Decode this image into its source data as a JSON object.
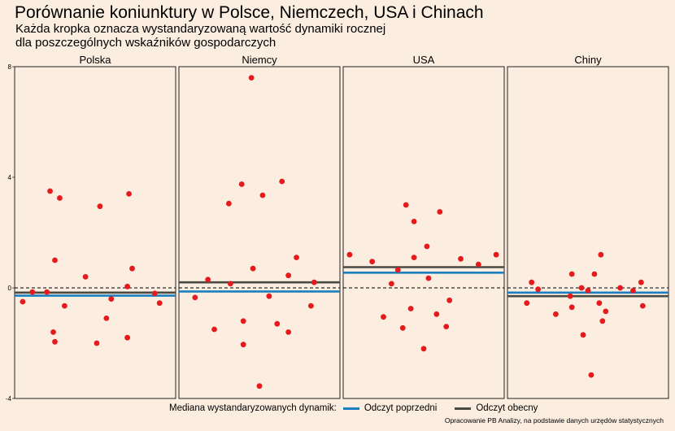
{
  "title": "Porównanie koniunktury w Polsce, Niemczech, USA i Chinach",
  "subtitle_line1": "Każda kropka oznacza wystandaryzowaną wartość dynamiki rocznej",
  "subtitle_line2": "dla poszczególnych wskaźników gospodarczych",
  "caption": "Opracowanie PB Analizy, na podstawie danych urzędów statystycznych",
  "legend": {
    "title": "Mediana wystandaryzowanych dynamik:",
    "items": [
      {
        "label": "Odczyt poprzedni",
        "color": "#1a7fbf"
      },
      {
        "label": "Odczyt obecny",
        "color": "#4a4a42"
      }
    ]
  },
  "colors": {
    "background": "#fbede0",
    "points": "#e41a1c",
    "previous": "#1a7fbf",
    "current": "#4a4a42"
  },
  "chart_data": {
    "type": "scatter",
    "ylim": [
      -4,
      8
    ],
    "y_ticks": [
      -4,
      0,
      4,
      8
    ],
    "reference_line": 0,
    "panels": [
      {
        "name": "Polska",
        "previous_median": -0.28,
        "current_median": -0.17,
        "points": [
          {
            "x": 0.05,
            "y": -0.5
          },
          {
            "x": 0.11,
            "y": -0.15
          },
          {
            "x": 0.2,
            "y": -0.15
          },
          {
            "x": 0.22,
            "y": 3.5
          },
          {
            "x": 0.24,
            "y": -1.6
          },
          {
            "x": 0.25,
            "y": -1.95
          },
          {
            "x": 0.25,
            "y": 1.0
          },
          {
            "x": 0.28,
            "y": 3.25
          },
          {
            "x": 0.31,
            "y": -0.65
          },
          {
            "x": 0.44,
            "y": 0.4
          },
          {
            "x": 0.51,
            "y": -2.0
          },
          {
            "x": 0.53,
            "y": 2.95
          },
          {
            "x": 0.57,
            "y": -1.1
          },
          {
            "x": 0.6,
            "y": -0.4
          },
          {
            "x": 0.7,
            "y": -1.8
          },
          {
            "x": 0.71,
            "y": 3.4
          },
          {
            "x": 0.7,
            "y": 0.05
          },
          {
            "x": 0.73,
            "y": 0.7
          },
          {
            "x": 0.87,
            "y": -0.2
          },
          {
            "x": 0.9,
            "y": -0.55
          }
        ]
      },
      {
        "name": "Niemcy",
        "previous_median": -0.13,
        "current_median": 0.2,
        "points": [
          {
            "x": 0.1,
            "y": -0.35
          },
          {
            "x": 0.18,
            "y": 0.3
          },
          {
            "x": 0.22,
            "y": -1.5
          },
          {
            "x": 0.31,
            "y": 3.05
          },
          {
            "x": 0.32,
            "y": 0.15
          },
          {
            "x": 0.39,
            "y": 3.75
          },
          {
            "x": 0.4,
            "y": -2.05
          },
          {
            "x": 0.4,
            "y": -1.2
          },
          {
            "x": 0.45,
            "y": 7.6
          },
          {
            "x": 0.46,
            "y": 0.7
          },
          {
            "x": 0.5,
            "y": -3.55
          },
          {
            "x": 0.52,
            "y": 3.35
          },
          {
            "x": 0.56,
            "y": -0.3
          },
          {
            "x": 0.61,
            "y": -1.3
          },
          {
            "x": 0.64,
            "y": 3.85
          },
          {
            "x": 0.68,
            "y": 0.45
          },
          {
            "x": 0.68,
            "y": -1.6
          },
          {
            "x": 0.73,
            "y": 1.1
          },
          {
            "x": 0.82,
            "y": -0.65
          },
          {
            "x": 0.84,
            "y": 0.2
          }
        ]
      },
      {
        "name": "USA",
        "previous_median": 0.55,
        "current_median": 0.75,
        "points": [
          {
            "x": 0.04,
            "y": 1.2
          },
          {
            "x": 0.18,
            "y": 0.95
          },
          {
            "x": 0.25,
            "y": -1.05
          },
          {
            "x": 0.3,
            "y": 0.15
          },
          {
            "x": 0.34,
            "y": 0.65
          },
          {
            "x": 0.37,
            "y": -1.45
          },
          {
            "x": 0.39,
            "y": 3.0
          },
          {
            "x": 0.42,
            "y": -0.75
          },
          {
            "x": 0.44,
            "y": 1.1
          },
          {
            "x": 0.44,
            "y": 2.4
          },
          {
            "x": 0.5,
            "y": -2.2
          },
          {
            "x": 0.52,
            "y": 1.5
          },
          {
            "x": 0.53,
            "y": 0.35
          },
          {
            "x": 0.58,
            "y": -0.95
          },
          {
            "x": 0.6,
            "y": 2.75
          },
          {
            "x": 0.64,
            "y": -1.4
          },
          {
            "x": 0.66,
            "y": -0.45
          },
          {
            "x": 0.73,
            "y": 1.05
          },
          {
            "x": 0.84,
            "y": 0.85
          },
          {
            "x": 0.95,
            "y": 1.2
          }
        ]
      },
      {
        "name": "Chiny",
        "previous_median": -0.17,
        "current_median": -0.3,
        "points": [
          {
            "x": 0.12,
            "y": -0.55
          },
          {
            "x": 0.15,
            "y": 0.2
          },
          {
            "x": 0.19,
            "y": -0.05
          },
          {
            "x": 0.3,
            "y": -0.95
          },
          {
            "x": 0.39,
            "y": -0.3
          },
          {
            "x": 0.4,
            "y": -0.7
          },
          {
            "x": 0.4,
            "y": 0.5
          },
          {
            "x": 0.46,
            "y": 0.0
          },
          {
            "x": 0.47,
            "y": -1.7
          },
          {
            "x": 0.5,
            "y": -0.1
          },
          {
            "x": 0.52,
            "y": -3.15
          },
          {
            "x": 0.54,
            "y": 0.5
          },
          {
            "x": 0.57,
            "y": -0.55
          },
          {
            "x": 0.58,
            "y": 1.2
          },
          {
            "x": 0.59,
            "y": -1.2
          },
          {
            "x": 0.61,
            "y": -0.85
          },
          {
            "x": 0.7,
            "y": 0.0
          },
          {
            "x": 0.78,
            "y": -0.1
          },
          {
            "x": 0.83,
            "y": 0.2
          },
          {
            "x": 0.84,
            "y": -0.65
          }
        ]
      }
    ]
  }
}
